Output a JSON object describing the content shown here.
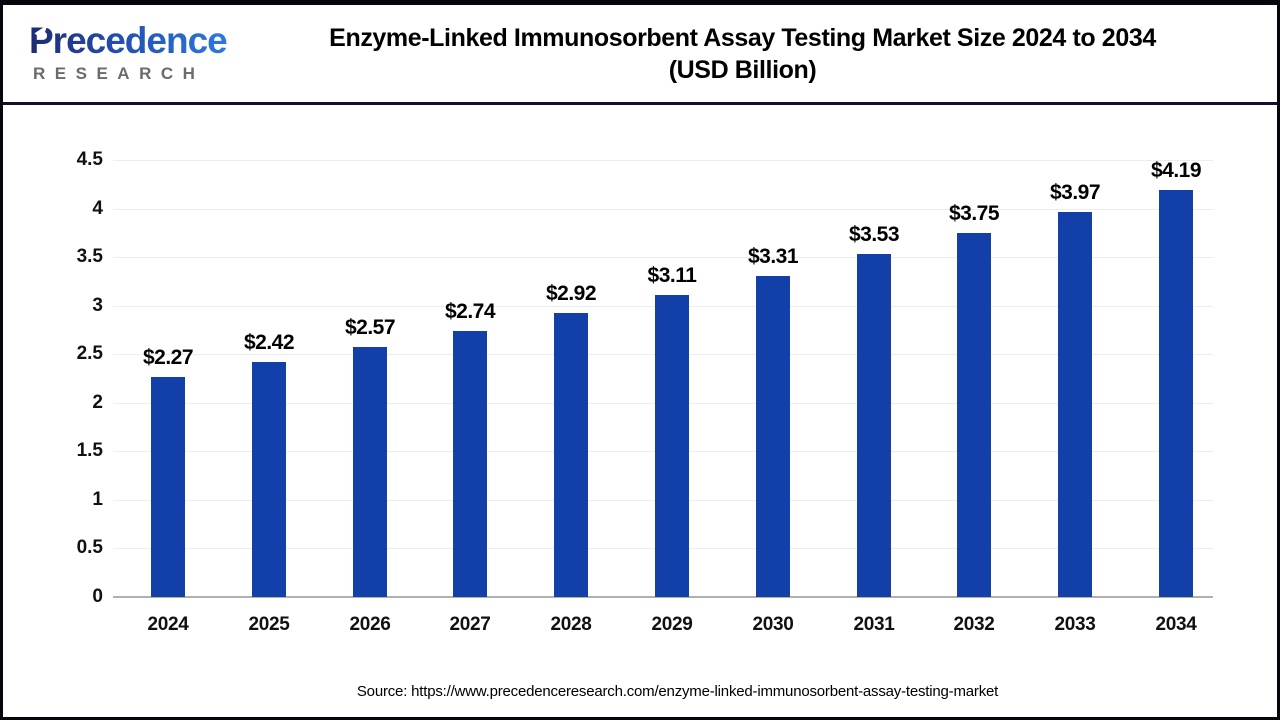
{
  "header": {
    "logo": {
      "brand": "Precedence",
      "subbrand": "RESEARCH"
    },
    "title_line1": "Enzyme-Linked Immunosorbent Assay Testing Market Size 2024 to 2034",
    "title_line2": "(USD Billion)"
  },
  "chart_data": {
    "type": "bar",
    "title": "Enzyme-Linked Immunosorbent Assay Testing Market Size 2024 to 2034 (USD Billion)",
    "categories": [
      "2024",
      "2025",
      "2026",
      "2027",
      "2028",
      "2029",
      "2030",
      "2031",
      "2032",
      "2033",
      "2034"
    ],
    "values": [
      2.27,
      2.42,
      2.57,
      2.74,
      2.92,
      3.11,
      3.31,
      3.53,
      3.75,
      3.97,
      4.19
    ],
    "data_labels": [
      "$2.27",
      "$2.42",
      "$2.57",
      "$2.74",
      "$2.92",
      "$3.11",
      "$3.31",
      "$3.53",
      "$3.75",
      "$3.97",
      "$4.19"
    ],
    "xlabel": "",
    "ylabel": "",
    "ylim": [
      0,
      4.5
    ],
    "ytick_step": 0.5,
    "grid": true,
    "legend": false,
    "bar_color": "#1340a8"
  },
  "footer": {
    "source": "Source: https://www.precedenceresearch.com/enzyme-linked-immunosorbent-assay-testing-market"
  },
  "colors": {
    "bar": "#1340a8",
    "gridline": "#ededed",
    "axis_line": "#b0b0b0",
    "separator": "#10102c",
    "brand_gradient_start": "#1d2b72",
    "brand_gradient_end": "#2e7de2",
    "subbrand_gray": "#6b6b6b"
  }
}
